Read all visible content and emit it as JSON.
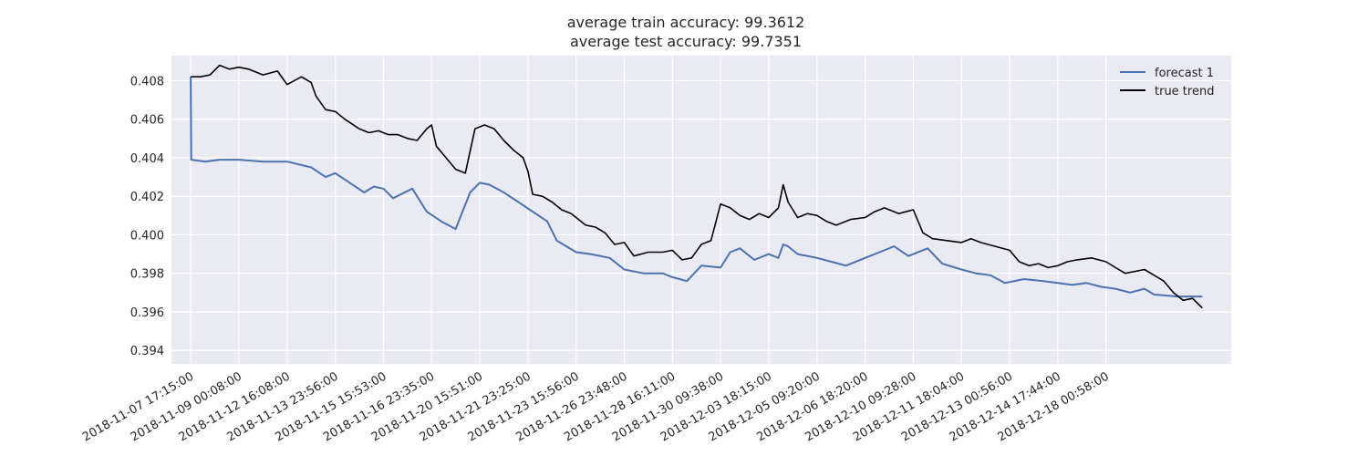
{
  "chart_data": {
    "type": "line",
    "title_lines": [
      "average train accuracy: 99.3612",
      "average test accuracy: 99.7351"
    ],
    "xlabel": "",
    "ylabel": "",
    "x_tick_labels": [
      "2018-11-07 17:15:00",
      "2018-11-09 00:08:00",
      "2018-11-12 16:08:00",
      "2018-11-13 23:56:00",
      "2018-11-15 15:53:00",
      "2018-11-16 23:35:00",
      "2018-11-20 15:51:00",
      "2018-11-21 23:25:00",
      "2018-11-23 15:56:00",
      "2018-11-26 23:48:00",
      "2018-11-28 16:11:00",
      "2018-11-30 09:38:00",
      "2018-12-03 18:15:00",
      "2018-12-05 09:20:00",
      "2018-12-06 18:20:00",
      "2018-12-10 09:28:00",
      "2018-12-11 18:04:00",
      "2018-12-13 00:56:00",
      "2018-12-14 17:44:00",
      "2018-12-18 00:58:00"
    ],
    "y_ticks": [
      0.394,
      0.396,
      0.398,
      0.4,
      0.402,
      0.404,
      0.406,
      0.408
    ],
    "y_tick_labels": [
      "0.394",
      "0.396",
      "0.398",
      "0.400",
      "0.402",
      "0.404",
      "0.406",
      "0.408"
    ],
    "ylim": [
      0.3933,
      0.4093
    ],
    "x_position_range": [
      -0.4,
      21.6
    ],
    "grid": true,
    "legend_position": "top-right",
    "colors": {
      "background": "#eaeaf2",
      "grid": "#ffffff",
      "forecast": "#4c72b0",
      "true_trend": "#000000",
      "text": "#262626"
    },
    "series": [
      {
        "name": "forecast 1",
        "color": "#4c72b0",
        "x": [
          0,
          0.01,
          0.3,
          0.6,
          1,
          1.5,
          2,
          2.5,
          2.8,
          3,
          3.3,
          3.6,
          3.8,
          4,
          4.2,
          4.6,
          4.9,
          5.2,
          5.5,
          5.8,
          6,
          6.2,
          6.5,
          6.8,
          7.1,
          7.4,
          7.6,
          7.8,
          8,
          8.3,
          8.7,
          9,
          9.4,
          9.8,
          10,
          10.3,
          10.6,
          11,
          11.2,
          11.4,
          11.7,
          12,
          12.2,
          12.3,
          12.4,
          12.6,
          13,
          13.3,
          13.6,
          14,
          14.3,
          14.6,
          14.9,
          15.3,
          15.6,
          16,
          16.3,
          16.6,
          16.9,
          17.3,
          17.7,
          18,
          18.3,
          18.6,
          18.9,
          19.2,
          19.5,
          19.8,
          20,
          20.5,
          21
        ],
        "y": [
          0.4082,
          0.4039,
          0.4038,
          0.4039,
          0.4039,
          0.4038,
          0.4038,
          0.4035,
          0.403,
          0.4032,
          0.4027,
          0.4022,
          0.4025,
          0.4024,
          0.4019,
          0.4024,
          0.4012,
          0.4007,
          0.4003,
          0.4022,
          0.4027,
          0.4026,
          0.4022,
          0.4017,
          0.4012,
          0.4007,
          0.3997,
          0.3994,
          0.3991,
          0.399,
          0.3988,
          0.3982,
          0.398,
          0.398,
          0.3978,
          0.3976,
          0.3984,
          0.3983,
          0.3991,
          0.3993,
          0.3987,
          0.399,
          0.3988,
          0.3995,
          0.3994,
          0.399,
          0.3988,
          0.3986,
          0.3984,
          0.3988,
          0.3991,
          0.3994,
          0.3989,
          0.3993,
          0.3985,
          0.3982,
          0.398,
          0.3979,
          0.3975,
          0.3977,
          0.3976,
          0.3975,
          0.3974,
          0.3975,
          0.3973,
          0.3972,
          0.397,
          0.3972,
          0.3969,
          0.3968,
          0.3968
        ]
      },
      {
        "name": "true trend",
        "color": "#000000",
        "x": [
          0,
          0.2,
          0.4,
          0.6,
          0.8,
          1,
          1.2,
          1.5,
          1.8,
          2,
          2.3,
          2.5,
          2.6,
          2.8,
          3,
          3.2,
          3.5,
          3.7,
          3.9,
          4.1,
          4.3,
          4.5,
          4.7,
          4.9,
          5,
          5.1,
          5.3,
          5.5,
          5.7,
          5.9,
          6.1,
          6.3,
          6.5,
          6.7,
          6.9,
          7.0,
          7.1,
          7.3,
          7.5,
          7.7,
          7.9,
          8,
          8.2,
          8.4,
          8.6,
          8.8,
          9,
          9.2,
          9.5,
          9.8,
          10,
          10.2,
          10.4,
          10.6,
          10.8,
          11,
          11.2,
          11.4,
          11.6,
          11.8,
          12,
          12.2,
          12.3,
          12.4,
          12.6,
          12.8,
          13,
          13.2,
          13.4,
          13.7,
          14,
          14.2,
          14.4,
          14.7,
          15,
          15.2,
          15.4,
          15.7,
          16,
          16.2,
          16.4,
          16.7,
          17,
          17.2,
          17.4,
          17.6,
          17.8,
          18,
          18.2,
          18.4,
          18.7,
          19,
          19.2,
          19.4,
          19.6,
          19.8,
          20.0,
          20.2,
          20.4,
          20.6,
          20.8,
          21
        ],
        "y": [
          0.4082,
          0.4082,
          0.4083,
          0.4088,
          0.4086,
          0.4087,
          0.4086,
          0.4083,
          0.4085,
          0.4078,
          0.4082,
          0.4079,
          0.4072,
          0.4065,
          0.4064,
          0.406,
          0.4055,
          0.4053,
          0.4054,
          0.4052,
          0.4052,
          0.405,
          0.4049,
          0.4055,
          0.4057,
          0.4046,
          0.404,
          0.4034,
          0.4032,
          0.4055,
          0.4057,
          0.4055,
          0.4049,
          0.4044,
          0.404,
          0.4033,
          0.4021,
          0.402,
          0.4017,
          0.4013,
          0.4011,
          0.4009,
          0.4005,
          0.4004,
          0.4001,
          0.3995,
          0.3996,
          0.3989,
          0.3991,
          0.3991,
          0.3992,
          0.3987,
          0.3988,
          0.3995,
          0.3997,
          0.4016,
          0.4014,
          0.401,
          0.4008,
          0.4011,
          0.4009,
          0.4014,
          0.4026,
          0.4017,
          0.4009,
          0.4011,
          0.401,
          0.4007,
          0.4005,
          0.4008,
          0.4009,
          0.4012,
          0.4014,
          0.4011,
          0.4013,
          0.4001,
          0.3998,
          0.3997,
          0.3996,
          0.3998,
          0.3996,
          0.3994,
          0.3992,
          0.3986,
          0.3984,
          0.3985,
          0.3983,
          0.3984,
          0.3986,
          0.3987,
          0.3988,
          0.3986,
          0.3983,
          0.398,
          0.3981,
          0.3982,
          0.3979,
          0.3976,
          0.397,
          0.3966,
          0.3967,
          0.3962
        ]
      }
    ]
  }
}
